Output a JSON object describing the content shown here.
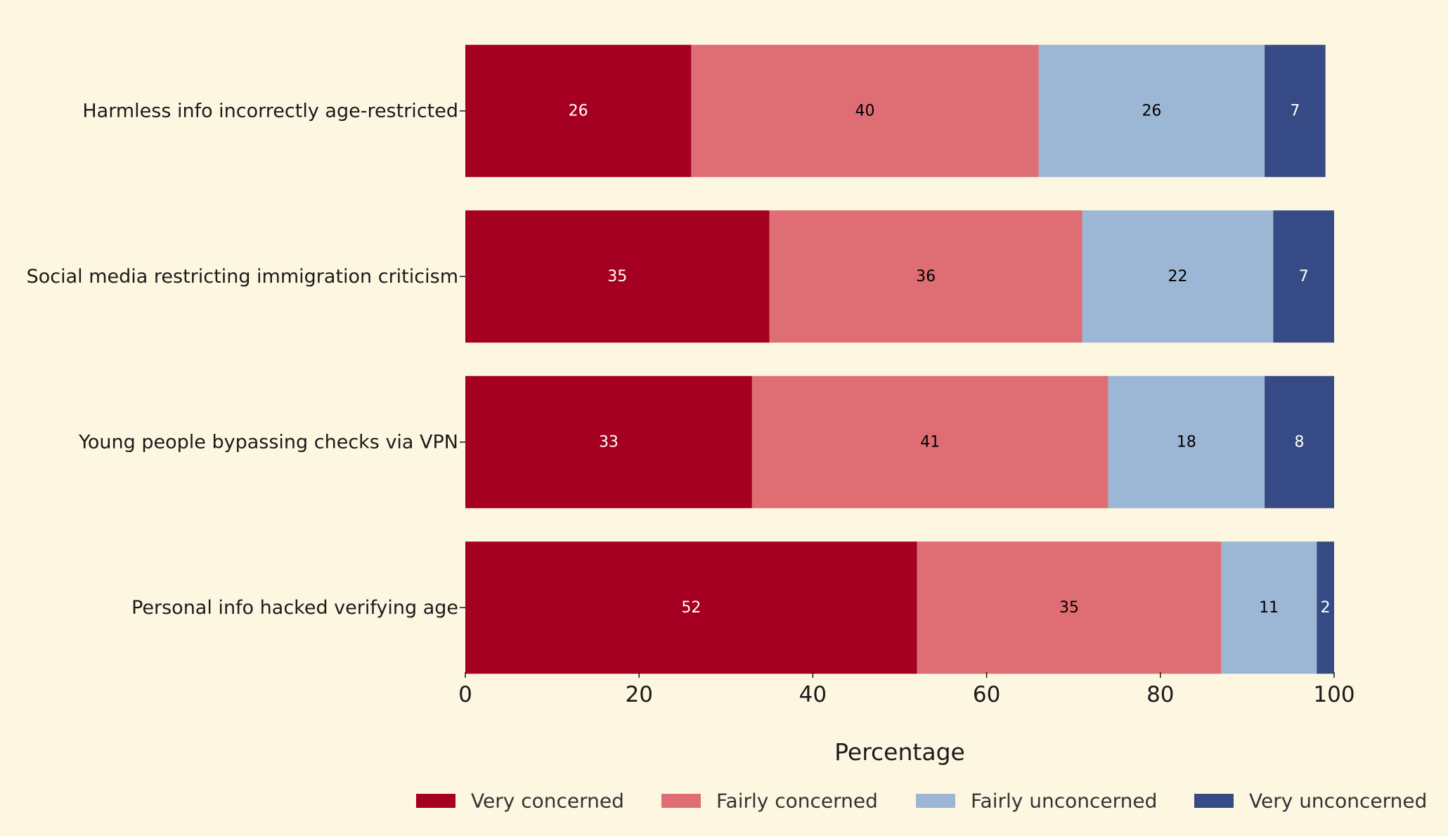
{
  "chart_data": {
    "type": "bar",
    "orientation": "horizontal",
    "stacked": true,
    "title": "",
    "xlabel": "Percentage",
    "ylabel": "",
    "xlim": [
      0,
      100
    ],
    "xticks": [
      0,
      20,
      40,
      60,
      80,
      100
    ],
    "grid": false,
    "legend_position": "bottom",
    "categories": [
      "Harmless info incorrectly age-restricted",
      "Social media restricting immigration criticism",
      "Young people bypassing checks via VPN",
      "Personal info hacked verifying age"
    ],
    "series": [
      {
        "name": "Very concerned",
        "color": "#a50021",
        "label_color": "#ffffff",
        "values": [
          26,
          35,
          33,
          52
        ]
      },
      {
        "name": "Fairly concerned",
        "color": "#df6d74",
        "label_color": "#000000",
        "values": [
          40,
          36,
          41,
          35
        ]
      },
      {
        "name": "Fairly unconcerned",
        "color": "#9cb7d5",
        "label_color": "#000000",
        "values": [
          26,
          22,
          18,
          11
        ]
      },
      {
        "name": "Very unconcerned",
        "color": "#364a85",
        "label_color": "#ffffff",
        "values": [
          7,
          7,
          8,
          2
        ]
      }
    ]
  }
}
